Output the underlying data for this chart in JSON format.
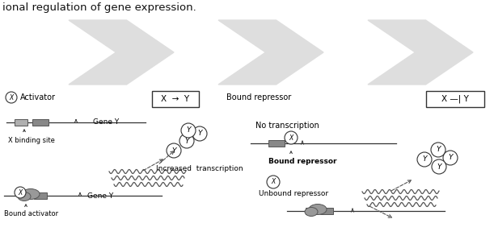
{
  "fig_bg": "#ffffff",
  "title_text": "ional regulation of gene expression.",
  "activator_label": "Activator",
  "x_binding_site_label": "X binding site",
  "gene_y_label1": "Gene Y",
  "gene_y_label2": "Gene Y",
  "bound_activator_label": "Bound activator",
  "increased_transcription_label": "Increased  transcription",
  "bound_repressor_label1": "Bound repressor",
  "bound_repressor_label2": "Bound repressor",
  "no_transcription_label": "No transcription",
  "unbound_repressor_label": "Unbound repressor",
  "box1_text": "X  →  Y",
  "box2_text": "X —| Y",
  "watermark_color": "#dedede",
  "line_color": "#333333",
  "gray_dark": "#808080",
  "gray_light": "#cccccc",
  "gray_med": "#a0a0a0",
  "gray_blob": "#999999",
  "gray_rect1": "#b0b0b0",
  "gray_rect2": "#888888"
}
